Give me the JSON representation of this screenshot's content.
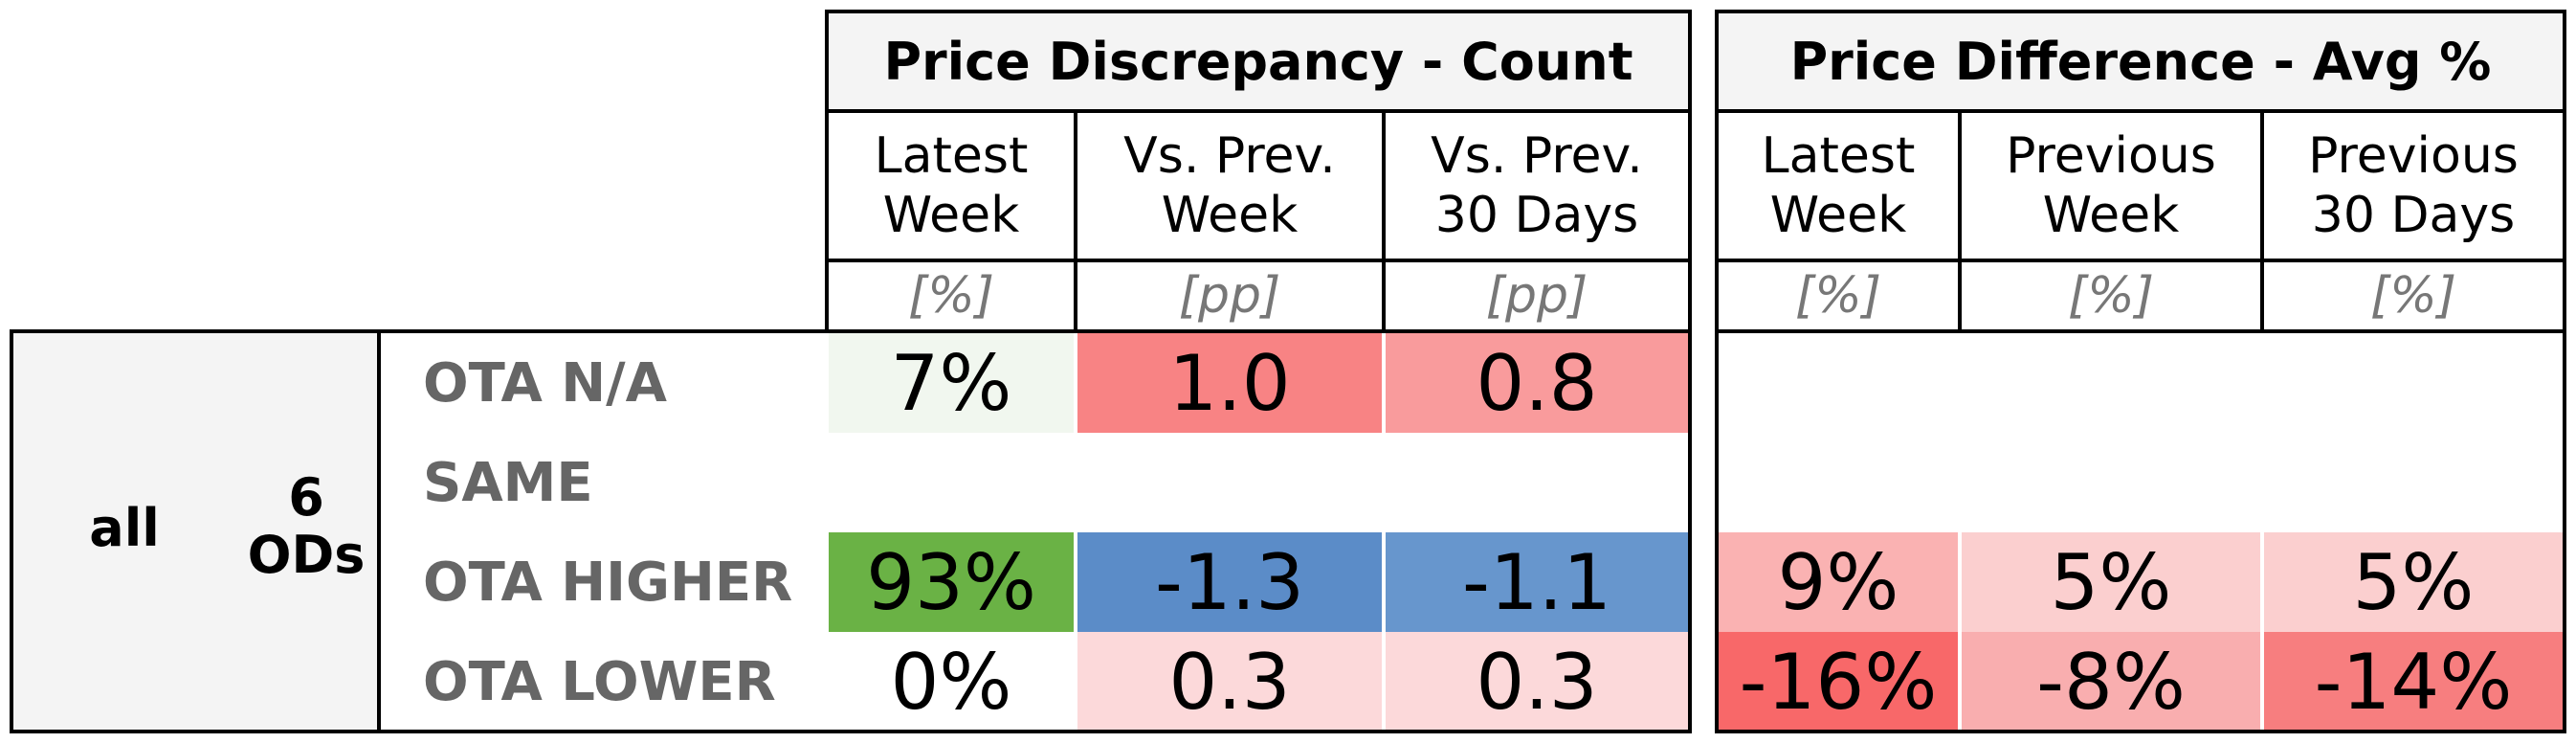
{
  "chart_data": {
    "type": "table",
    "groups": [
      {
        "title": "Price Discrepancy - Count",
        "columns": [
          {
            "label": "Latest\nWeek",
            "unit": "[%]"
          },
          {
            "label": "Vs. Prev.\nWeek",
            "unit": "[pp]"
          },
          {
            "label": "Vs. Prev.\n30 Days",
            "unit": "[pp]"
          }
        ]
      },
      {
        "title": "Price Difference - Avg %",
        "columns": [
          {
            "label": "Latest\nWeek",
            "unit": "[%]"
          },
          {
            "label": "Previous\nWeek",
            "unit": "[%]"
          },
          {
            "label": "Previous\n30 Days",
            "unit": "[%]"
          }
        ]
      }
    ],
    "row_group": {
      "label": "all",
      "sublabel": "6\nODs"
    },
    "rows": [
      {
        "label": "OTA N/A",
        "count": [
          {
            "v": "7%",
            "c": "#f1f7ef"
          },
          {
            "v": "1.0",
            "c": "#f88384"
          },
          {
            "v": "0.8",
            "c": "#f99b9c"
          }
        ],
        "diff": [
          {
            "v": "",
            "c": "#ffffff"
          },
          {
            "v": "",
            "c": "#ffffff"
          },
          {
            "v": "",
            "c": "#ffffff"
          }
        ]
      },
      {
        "label": "SAME",
        "count": [
          {
            "v": "",
            "c": "#ffffff"
          },
          {
            "v": "",
            "c": "#ffffff"
          },
          {
            "v": "",
            "c": "#ffffff"
          }
        ],
        "diff": [
          {
            "v": "",
            "c": "#ffffff"
          },
          {
            "v": "",
            "c": "#ffffff"
          },
          {
            "v": "",
            "c": "#ffffff"
          }
        ]
      },
      {
        "label": "OTA HIGHER",
        "count": [
          {
            "v": "93%",
            "c": "#6ab245"
          },
          {
            "v": "-1.3",
            "c": "#5b8cc8"
          },
          {
            "v": "-1.1",
            "c": "#6796cd"
          }
        ],
        "diff": [
          {
            "v": "9%",
            "c": "#fab2b2"
          },
          {
            "v": "5%",
            "c": "#fbcfcf"
          },
          {
            "v": "5%",
            "c": "#fbcfcf"
          }
        ]
      },
      {
        "label": "OTA LOWER",
        "count": [
          {
            "v": "0%",
            "c": "#ffffff"
          },
          {
            "v": "0.3",
            "c": "#fcd9da"
          },
          {
            "v": "0.3",
            "c": "#fcd9da"
          }
        ],
        "diff": [
          {
            "v": "-16%",
            "c": "#f86869"
          },
          {
            "v": "-8%",
            "c": "#f9aeaf"
          },
          {
            "v": "-14%",
            "c": "#f77e7f"
          }
        ]
      }
    ]
  }
}
